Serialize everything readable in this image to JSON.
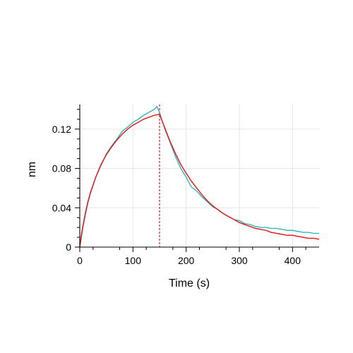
{
  "chart_data": {
    "type": "line",
    "title": "",
    "xlabel": "Time (s)",
    "ylabel": "nm",
    "xlim": [
      0,
      450
    ],
    "ylim": [
      0,
      0.145
    ],
    "x_ticks": [
      0,
      100,
      200,
      300,
      400
    ],
    "y_ticks": [
      0,
      0.04,
      0.08,
      0.12
    ],
    "x_tick_labels": [
      "0",
      "100",
      "200",
      "300",
      "400"
    ],
    "y_tick_labels": [
      "0",
      "0.04",
      "0.08",
      "0.12"
    ],
    "grid": true,
    "reference_lines_x": [
      0,
      150
    ],
    "series": [
      {
        "color": "#1fb3bd",
        "x": [
          0,
          5,
          10,
          15,
          20,
          30,
          40,
          50,
          60,
          70,
          80,
          90,
          100,
          110,
          120,
          130,
          140,
          145,
          150,
          155,
          160,
          170,
          180,
          190,
          200,
          210,
          220,
          230,
          240,
          250,
          260,
          270,
          280,
          290,
          300,
          310,
          320,
          330,
          340,
          350,
          360,
          370,
          380,
          390,
          400,
          410,
          420,
          430,
          440,
          450
        ],
        "values": [
          0.003,
          0.02,
          0.034,
          0.046,
          0.056,
          0.071,
          0.083,
          0.095,
          0.103,
          0.11,
          0.118,
          0.122,
          0.127,
          0.13,
          0.134,
          0.137,
          0.14,
          0.143,
          0.137,
          0.128,
          0.12,
          0.106,
          0.092,
          0.08,
          0.071,
          0.061,
          0.057,
          0.051,
          0.046,
          0.041,
          0.038,
          0.034,
          0.031,
          0.028,
          0.027,
          0.024,
          0.023,
          0.021,
          0.02,
          0.02,
          0.019,
          0.019,
          0.018,
          0.017,
          0.017,
          0.016,
          0.015,
          0.015,
          0.014,
          0.014
        ]
      },
      {
        "color": "#e02020",
        "x": [
          0,
          5,
          10,
          15,
          20,
          30,
          40,
          50,
          60,
          70,
          80,
          90,
          100,
          110,
          120,
          130,
          140,
          150,
          160,
          170,
          180,
          190,
          200,
          210,
          220,
          230,
          240,
          250,
          260,
          270,
          280,
          290,
          300,
          310,
          320,
          330,
          340,
          350,
          360,
          370,
          380,
          390,
          400,
          410,
          420,
          430,
          440,
          450
        ],
        "values": [
          0.0,
          0.018,
          0.032,
          0.045,
          0.055,
          0.071,
          0.084,
          0.094,
          0.102,
          0.109,
          0.115,
          0.12,
          0.124,
          0.127,
          0.13,
          0.132,
          0.134,
          0.135,
          0.121,
          0.107,
          0.095,
          0.084,
          0.075,
          0.067,
          0.06,
          0.053,
          0.047,
          0.042,
          0.038,
          0.034,
          0.031,
          0.028,
          0.025,
          0.023,
          0.021,
          0.019,
          0.018,
          0.017,
          0.015,
          0.014,
          0.013,
          0.012,
          0.012,
          0.011,
          0.01,
          0.009,
          0.009,
          0.008
        ]
      }
    ]
  }
}
